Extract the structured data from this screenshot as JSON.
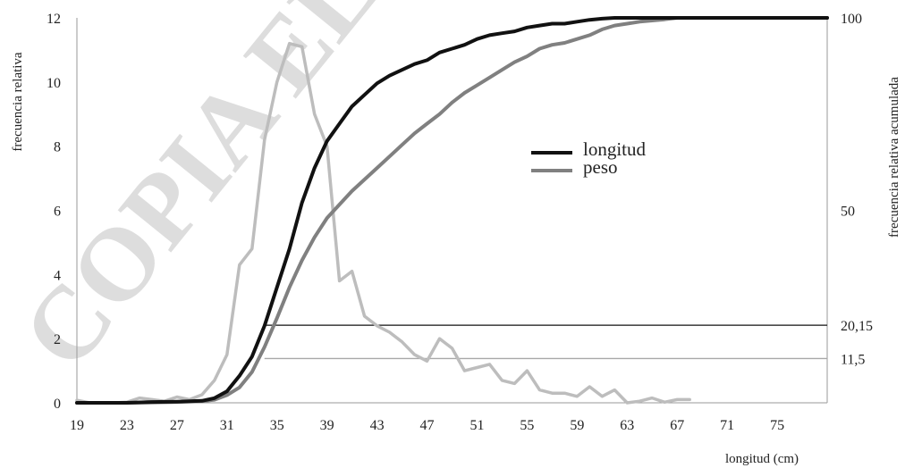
{
  "chart_data": {
    "type": "line",
    "xlabel": "longitud (cm)",
    "ylabel": "frecuencia relativa",
    "y2label": "frecuencia relativa acumulada",
    "xlim": [
      19,
      79
    ],
    "ylim": [
      0,
      12
    ],
    "y2lim": [
      0,
      100
    ],
    "x_ticks": [
      19,
      23,
      27,
      31,
      35,
      39,
      43,
      47,
      51,
      55,
      59,
      63,
      67,
      71,
      75
    ],
    "y_ticks": [
      0,
      2,
      4,
      6,
      8,
      10,
      12
    ],
    "y2_ticks": [
      {
        "value": 100,
        "label": "100"
      },
      {
        "value": 50,
        "label": "50"
      },
      {
        "value": 20.15,
        "label": "20,15"
      },
      {
        "value": 11.5,
        "label": "11,5"
      }
    ],
    "grid": false,
    "legend_position": "right-middle",
    "legend": [
      {
        "label": "longitud",
        "color": "#111111"
      },
      {
        "label": "peso",
        "color": "#808080"
      }
    ],
    "reference_lines": [
      {
        "y2": 20.15,
        "x_start": 34,
        "color": "#111111"
      },
      {
        "y2": 11.5,
        "x_start": 34,
        "color": "#a8a8a8"
      }
    ],
    "series": [
      {
        "axis": "left",
        "color": "#bdbdbd",
        "x": [
          19,
          20,
          21,
          22,
          23,
          24,
          25,
          26,
          27,
          28,
          29,
          30,
          31,
          32,
          33,
          34,
          35,
          36,
          37,
          38,
          39,
          40,
          41,
          42,
          43,
          44,
          45,
          46,
          47,
          48,
          49,
          50,
          51,
          52,
          53,
          54,
          55,
          56,
          57,
          58,
          59,
          60,
          61,
          62,
          63,
          64,
          65,
          66,
          67,
          68
        ],
        "values": [
          0.08,
          0,
          0,
          0,
          0.02,
          0.15,
          0.1,
          0.05,
          0.18,
          0.1,
          0.25,
          0.7,
          1.5,
          4.3,
          4.8,
          8.2,
          10.0,
          11.2,
          11.1,
          9.0,
          8.0,
          3.8,
          4.1,
          2.7,
          2.4,
          2.2,
          1.9,
          1.5,
          1.3,
          2.0,
          1.7,
          1.0,
          1.1,
          1.2,
          0.7,
          0.6,
          1.0,
          0.4,
          0.3,
          0.3,
          0.2,
          0.5,
          0.2,
          0.4,
          0,
          0.05,
          0.15,
          0.02,
          0.1,
          0.1
        ]
      },
      {
        "name": "peso",
        "axis": "right",
        "color": "#808080",
        "x": [
          19,
          21,
          23,
          25,
          27,
          29,
          30,
          31,
          32,
          33,
          34,
          35,
          36,
          37,
          38,
          39,
          40,
          41,
          42,
          43,
          44,
          45,
          46,
          47,
          48,
          49,
          50,
          51,
          52,
          53,
          54,
          55,
          56,
          57,
          58,
          59,
          60,
          61,
          62,
          63,
          64,
          65,
          66,
          67,
          68,
          70,
          75,
          79
        ],
        "values": [
          0,
          0,
          0,
          0.1,
          0.2,
          0.4,
          0.8,
          2.0,
          4.0,
          8.0,
          14.5,
          22.0,
          30.0,
          37.0,
          43.0,
          48.0,
          51.5,
          55.0,
          58.0,
          61.0,
          64.0,
          67.0,
          70.0,
          72.5,
          75.0,
          78.0,
          80.5,
          82.5,
          84.5,
          86.5,
          88.5,
          90.0,
          92.0,
          93.0,
          93.5,
          94.5,
          95.5,
          97.0,
          98.0,
          98.5,
          99.0,
          99.3,
          99.6,
          100,
          100,
          100,
          100,
          100
        ]
      },
      {
        "name": "longitud",
        "axis": "right",
        "color": "#111111",
        "x": [
          19,
          21,
          23,
          25,
          27,
          29,
          30,
          31,
          32,
          33,
          34,
          35,
          36,
          37,
          38,
          39,
          40,
          41,
          42,
          43,
          44,
          45,
          46,
          47,
          48,
          49,
          50,
          51,
          52,
          53,
          54,
          55,
          56,
          57,
          58,
          59,
          60,
          61,
          62,
          63,
          64,
          65,
          66,
          67,
          68,
          70,
          75,
          79
        ],
        "values": [
          0,
          0,
          0,
          0.2,
          0.3,
          0.5,
          1.2,
          3.0,
          7.0,
          12.0,
          20.0,
          30.0,
          40.0,
          52.0,
          61.0,
          68.0,
          72.5,
          77.0,
          80.0,
          83.0,
          85.0,
          86.5,
          88.0,
          89.0,
          91.0,
          92.0,
          93.0,
          94.5,
          95.5,
          96.0,
          96.5,
          97.5,
          98.0,
          98.5,
          98.5,
          99.0,
          99.5,
          99.8,
          100,
          100,
          100,
          100,
          100,
          100,
          100,
          100,
          100,
          100
        ]
      }
    ]
  }
}
